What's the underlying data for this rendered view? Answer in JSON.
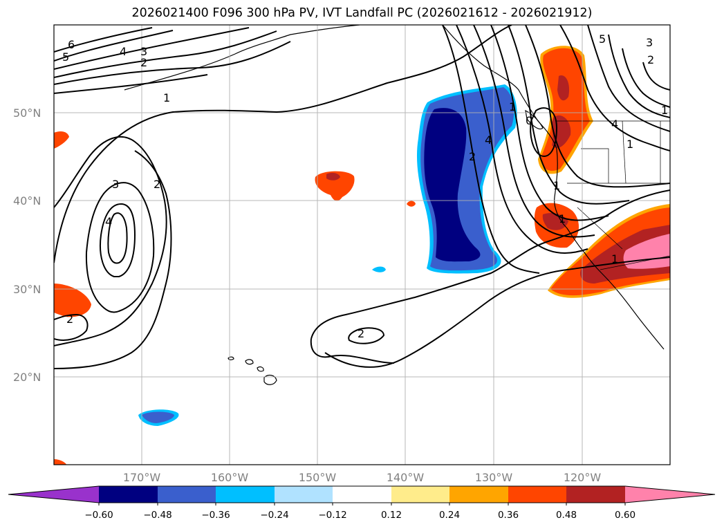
{
  "title": "2026021400 F096 300 hPa PV, IVT Landfall PC (2026021612 - 2026021912)",
  "lat_labels": [
    "50°N",
    "40°N",
    "30°N",
    "20°N"
  ],
  "lon_labels": [
    "170°W",
    "160°W",
    "150°W",
    "140°W",
    "130°W",
    "120°W"
  ],
  "colorbar": {
    "ticks": [
      "−0.60",
      "−0.48",
      "−0.36",
      "−0.24",
      "−0.12",
      "0.12",
      "0.24",
      "0.36",
      "0.48",
      "0.60"
    ],
    "colors": [
      "#9932cc",
      "#000080",
      "#3a5fcd",
      "#00bfff",
      "#b0e2ff",
      "#ffffff",
      "#ffec8b",
      "#ffa500",
      "#ff4500",
      "#b22222",
      "#ff82ab"
    ]
  },
  "contour_labels": [
    "6",
    "5",
    "4",
    "3",
    "2",
    "1",
    "3",
    "2",
    "4",
    "2",
    "2",
    "2",
    "4",
    "5",
    "3",
    "2",
    "1",
    "4",
    "1",
    "1",
    "1",
    "1",
    "0",
    "1"
  ],
  "colors": {
    "grid": "#b0b0b0",
    "coast": "#000000",
    "contour": "#000000"
  }
}
